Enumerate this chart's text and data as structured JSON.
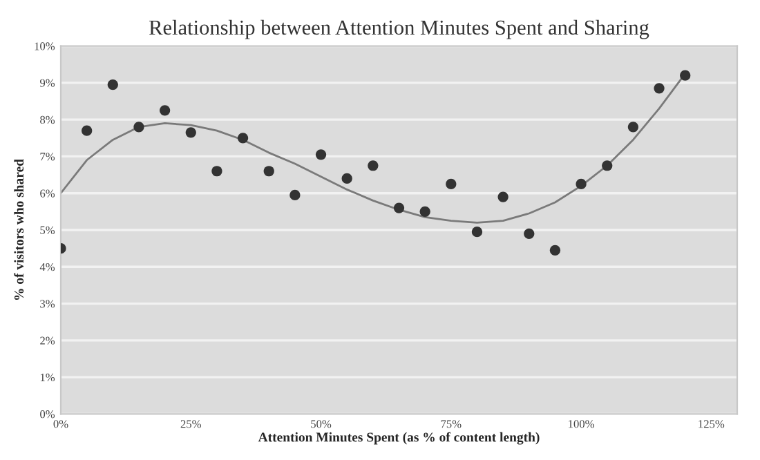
{
  "chart_data": {
    "type": "scatter",
    "title": "Relationship between Attention Minutes Spent and Sharing",
    "xlabel": "Attention Minutes Spent (as % of content length)",
    "ylabel": "% of visitors who shared",
    "x": [
      0,
      5,
      10,
      15,
      20,
      25,
      30,
      35,
      40,
      45,
      50,
      55,
      60,
      65,
      70,
      75,
      80,
      85,
      90,
      95,
      100,
      105,
      110,
      115,
      120
    ],
    "series": [
      {
        "color": "#333333",
        "marker": "circle",
        "values": [
          4.5,
          7.7,
          8.95,
          7.8,
          8.25,
          7.65,
          6.6,
          7.5,
          6.6,
          5.95,
          7.05,
          6.4,
          6.75,
          5.6,
          5.5,
          6.25,
          4.95,
          5.9,
          4.9,
          4.45,
          6.25,
          6.75,
          7.8,
          8.85,
          9.2
        ]
      },
      {
        "type": "line",
        "color": "#7a7a7a",
        "line_style": "solid",
        "x": [
          0,
          5,
          10,
          15,
          20,
          25,
          30,
          35,
          40,
          45,
          50,
          55,
          60,
          65,
          70,
          75,
          80,
          85,
          90,
          95,
          100,
          105,
          110,
          115,
          120
        ],
        "values": [
          6.0,
          6.9,
          7.45,
          7.8,
          7.9,
          7.85,
          7.7,
          7.45,
          7.1,
          6.8,
          6.45,
          6.1,
          5.8,
          5.55,
          5.35,
          5.25,
          5.2,
          5.25,
          5.45,
          5.75,
          6.2,
          6.75,
          7.45,
          8.3,
          9.25
        ]
      }
    ],
    "xlim": [
      0,
      130
    ],
    "xticks": [
      {
        "value": 0,
        "label": "0%"
      },
      {
        "value": 25,
        "label": "25%"
      },
      {
        "value": 50,
        "label": "50%"
      },
      {
        "value": 75,
        "label": "75%"
      },
      {
        "value": 100,
        "label": "100%"
      },
      {
        "value": 125,
        "label": "125%"
      }
    ],
    "ylim": [
      0,
      10
    ],
    "yticks": [
      {
        "value": 0,
        "label": "0%"
      },
      {
        "value": 1,
        "label": "1%"
      },
      {
        "value": 2,
        "label": "2%"
      },
      {
        "value": 3,
        "label": "3%"
      },
      {
        "value": 4,
        "label": "4%"
      },
      {
        "value": 5,
        "label": "5%"
      },
      {
        "value": 6,
        "label": "6%"
      },
      {
        "value": 7,
        "label": "7%"
      },
      {
        "value": 8,
        "label": "8%"
      },
      {
        "value": 9,
        "label": "9%"
      },
      {
        "value": 10,
        "label": "10%"
      }
    ],
    "grid": "y"
  }
}
